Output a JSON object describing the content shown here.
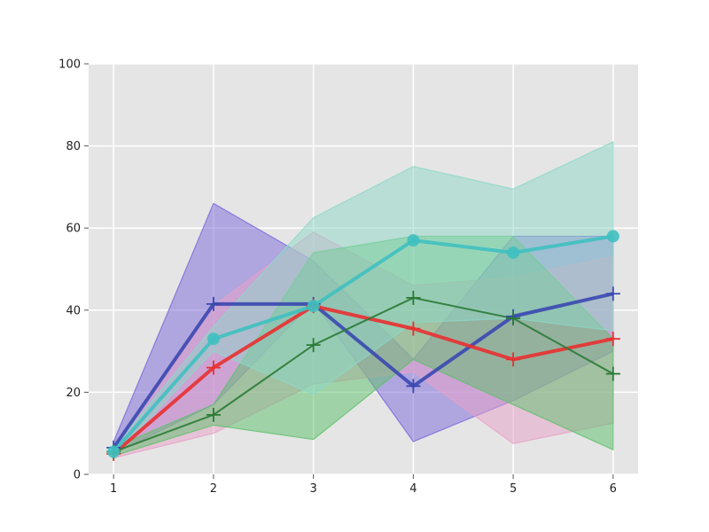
{
  "chart_data": {
    "type": "line",
    "title": "",
    "xlabel": "",
    "ylabel": "",
    "x": [
      1,
      2,
      3,
      4,
      5,
      6
    ],
    "xlim": [
      0.75,
      6.25
    ],
    "ylim": [
      0,
      100
    ],
    "xticks": [
      "1",
      "2",
      "3",
      "4",
      "5",
      "6"
    ],
    "yticks": [
      "0",
      "20",
      "40",
      "60",
      "80",
      "100"
    ],
    "grid": true,
    "legend": "none",
    "background": "#e5e5e5",
    "series": [
      {
        "color": "#7b68d9",
        "line_color": "#3a48b0",
        "marker": "plus",
        "line_width": 4,
        "values": [
          6.5,
          41.5,
          41.5,
          21.5,
          38.5,
          44
        ],
        "band_low": [
          5,
          17,
          42,
          8,
          18,
          30
        ],
        "band_high": [
          8,
          66,
          52,
          28,
          58,
          58
        ]
      },
      {
        "color": "#e8a0c8",
        "line_color": "#e83030",
        "marker": "plus",
        "line_width": 4,
        "values": [
          5,
          26,
          41,
          35.5,
          28,
          33
        ],
        "band_low": [
          4,
          10,
          22,
          25,
          7.5,
          12.5
        ],
        "band_high": [
          6,
          41,
          59,
          46,
          48,
          53
        ]
      },
      {
        "color": "#5cc06a",
        "line_color": "#2a7a35",
        "marker": "plus",
        "line_width": 2,
        "values": [
          5.5,
          14.5,
          31.5,
          43,
          38,
          24.5
        ],
        "band_low": [
          4.5,
          12,
          8.5,
          28,
          17,
          6
        ],
        "band_high": [
          6.5,
          17,
          54,
          58,
          58,
          33
        ]
      },
      {
        "color": "#8dd8c8",
        "line_color": "#3fc0c0",
        "marker": "circle",
        "line_width": 4,
        "values": [
          5.5,
          33,
          41,
          57,
          54,
          58
        ],
        "band_low": [
          4.5,
          30,
          19.5,
          37,
          38,
          35
        ],
        "band_high": [
          6.5,
          36,
          62.5,
          75,
          69.5,
          81
        ]
      }
    ]
  }
}
